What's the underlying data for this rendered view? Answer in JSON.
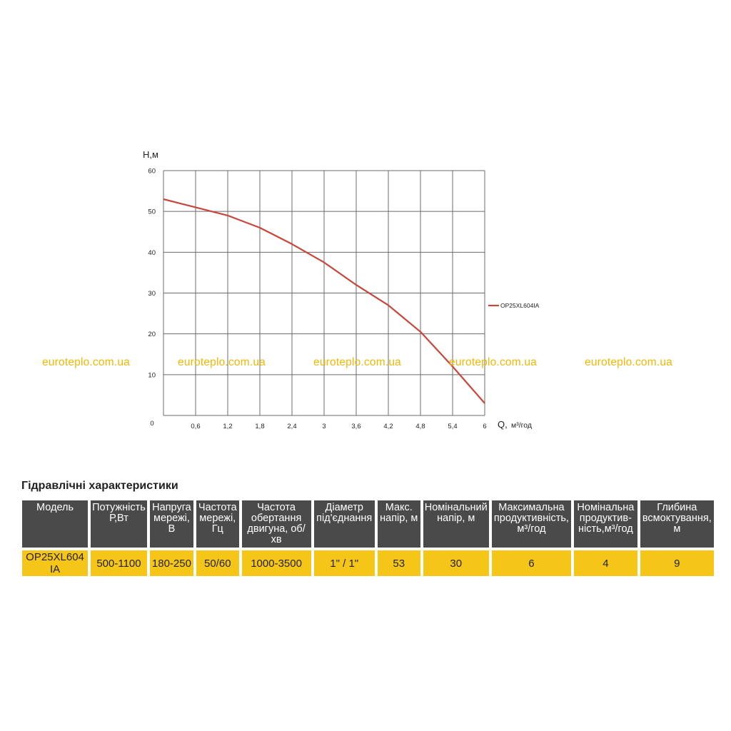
{
  "chart_data": {
    "type": "line",
    "ylabel": "H,м",
    "xlabel_prefix": "Q,",
    "xlabel_unit": "м³/год",
    "origin_label": "0",
    "x_ticks": [
      "0,6",
      "1,2",
      "1,8",
      "2,4",
      "3",
      "3,6",
      "4,2",
      "4,8",
      "5,4",
      "6"
    ],
    "y_ticks": [
      "10",
      "20",
      "30",
      "40",
      "50",
      "60"
    ],
    "xlim": [
      0,
      6
    ],
    "ylim": [
      0,
      60
    ],
    "grid": true,
    "legend_position": "right",
    "series": [
      {
        "name": "OP25XL604IA",
        "color": "#c9463b",
        "x": [
          0,
          0.6,
          1.2,
          1.8,
          2.4,
          3.0,
          3.6,
          4.2,
          4.8,
          5.4,
          6.0
        ],
        "y": [
          53,
          51,
          49,
          46,
          42,
          37.5,
          32,
          27,
          20.5,
          12,
          3
        ]
      }
    ]
  },
  "watermark": {
    "text": "euroteplo.com.ua",
    "color": "#f2b705"
  },
  "specs": {
    "title": "Гідравлічні характеристики",
    "headers": [
      "Модель",
      "Потужність\nР,Вт",
      "Напруга\nмережі,\nВ",
      "Частота\nмережі,\nГц",
      "Частота\nобертання\nдвигуна, об/хв",
      "Діаметр\nпід'єднання",
      "Макс.\nнапір, м",
      "Номінальний\nнапір, м",
      "Максимальна\nпродуктивність,\nм³/год",
      "Номінальна\nпродуктив-\nність,м³/год",
      "Глибина\nвсмоктування,\nм"
    ],
    "row": [
      "OP25XL604 IA",
      "500-1100",
      "180-250",
      "50/60",
      "1000-3500",
      "1\" / 1\"",
      "53",
      "30",
      "6",
      "4",
      "9"
    ],
    "header_color": "#4a4a4a",
    "cell_color": "#f5c518"
  }
}
